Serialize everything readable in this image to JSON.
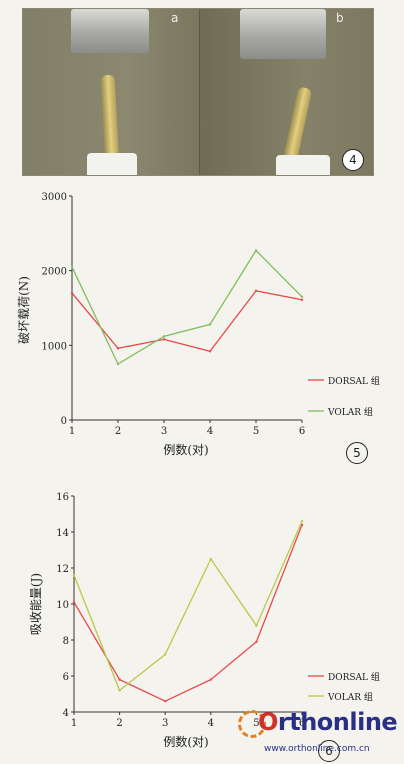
{
  "figure4": {
    "panel_a_label": "a",
    "panel_b_label": "b",
    "number": "4"
  },
  "chart_data": [
    {
      "type": "line",
      "number": "5",
      "x": [
        1,
        2,
        3,
        4,
        5,
        6
      ],
      "xlabel": "例数(对)",
      "ylabel": "破坏载荷(N)",
      "ylim": [
        0,
        3000
      ],
      "yticks": [
        0,
        1000,
        2000,
        3000
      ],
      "xticks": [
        1,
        2,
        3,
        4,
        5,
        6
      ],
      "series": [
        {
          "name": "DORSAL 组",
          "color": "#e8484a",
          "values": [
            1700,
            960,
            1080,
            920,
            1730,
            1610
          ]
        },
        {
          "name": "VOLAR 组",
          "color": "#7fbf5a",
          "values": [
            2050,
            750,
            1120,
            1280,
            2270,
            1650
          ]
        }
      ],
      "grid": false,
      "legend": "right"
    },
    {
      "type": "line",
      "number": "6",
      "x": [
        1,
        2,
        3,
        4,
        5,
        6
      ],
      "xlabel": "例数(对)",
      "ylabel": "吸收能量(J)",
      "ylim": [
        4,
        16
      ],
      "yticks": [
        4,
        6,
        8,
        10,
        12,
        14,
        16
      ],
      "xticks": [
        1,
        2,
        3,
        4,
        5,
        6
      ],
      "series": [
        {
          "name": "DORSAL 组",
          "color": "#e8484a",
          "values": [
            10.1,
            5.8,
            4.6,
            5.8,
            7.9,
            14.4
          ]
        },
        {
          "name": "VOLAR 组",
          "color": "#b9c94a",
          "values": [
            11.6,
            5.2,
            7.2,
            12.5,
            8.8,
            14.6
          ]
        }
      ],
      "grid": false,
      "legend": "bottom-right"
    }
  ],
  "watermark": {
    "logo_prefix": "O",
    "logo_rest": "rthonline",
    "url": "www.orthonline.com.cn"
  }
}
